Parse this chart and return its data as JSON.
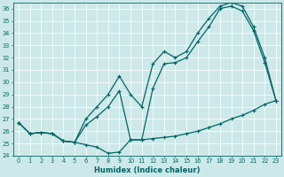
{
  "xlabel": "Humidex (Indice chaleur)",
  "background_color": "#cde8e8",
  "line_color": "#006666",
  "xlim": [
    -0.5,
    23.5
  ],
  "ylim": [
    24,
    36.5
  ],
  "yticks": [
    24,
    25,
    26,
    27,
    28,
    29,
    30,
    31,
    32,
    33,
    34,
    35,
    36
  ],
  "xticks": [
    0,
    1,
    2,
    3,
    4,
    5,
    6,
    7,
    8,
    9,
    10,
    11,
    12,
    13,
    14,
    15,
    16,
    17,
    18,
    19,
    20,
    21,
    22,
    23
  ],
  "series1_x": [
    0,
    1,
    2,
    3,
    4,
    5,
    6,
    7,
    8,
    9,
    10,
    11,
    12,
    13,
    14,
    15,
    16,
    17,
    18,
    19,
    20,
    21,
    22,
    23
  ],
  "series1_y": [
    26.7,
    25.8,
    25.9,
    25.8,
    25.2,
    25.1,
    24.9,
    24.7,
    24.2,
    24.3,
    25.3,
    25.3,
    25.4,
    25.5,
    25.6,
    25.8,
    26.0,
    26.3,
    26.6,
    27.0,
    27.3,
    27.7,
    28.2,
    28.5
  ],
  "series2_x": [
    0,
    1,
    2,
    3,
    4,
    5,
    6,
    7,
    8,
    9,
    10,
    11,
    12,
    13,
    14,
    15,
    16,
    17,
    18,
    19,
    20,
    21,
    22,
    23
  ],
  "series2_y": [
    26.7,
    25.8,
    25.9,
    25.8,
    25.2,
    25.1,
    26.5,
    27.2,
    28.0,
    29.3,
    25.3,
    25.3,
    29.5,
    31.5,
    31.6,
    32.0,
    33.3,
    34.5,
    36.0,
    36.2,
    35.8,
    34.2,
    31.6,
    28.5
  ],
  "series3_x": [
    0,
    1,
    2,
    3,
    4,
    5,
    6,
    7,
    8,
    9,
    10,
    11,
    12,
    13,
    14,
    15,
    16,
    17,
    18,
    19,
    20,
    21,
    22,
    23
  ],
  "series3_y": [
    26.7,
    25.8,
    25.9,
    25.8,
    25.2,
    25.1,
    27.0,
    28.0,
    29.0,
    30.5,
    29.0,
    28.0,
    31.5,
    32.5,
    32.0,
    32.5,
    34.0,
    35.2,
    36.2,
    36.5,
    36.2,
    34.5,
    32.0,
    28.5
  ]
}
